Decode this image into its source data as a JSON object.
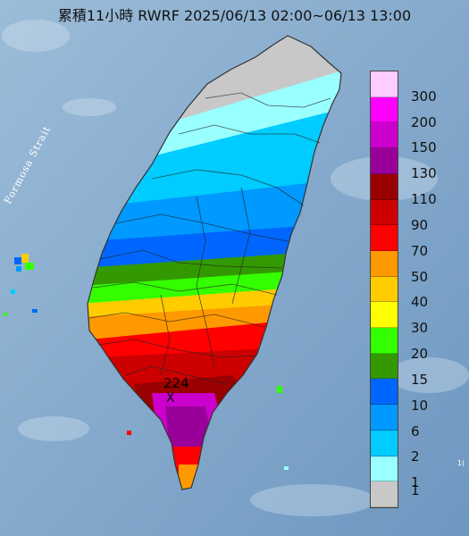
{
  "title": "累積11小時 RWRF 2025/06/13 02:00~06/13 13:00",
  "strait_label": "Formosa Strait",
  "max_value_label": "224",
  "max_marker": "X",
  "edge_note": "1(",
  "legend": {
    "unit_note": "",
    "bins": [
      {
        "label": "300",
        "color": "#ffccff"
      },
      {
        "label": "200",
        "color": "#ff00ff"
      },
      {
        "label": "150",
        "color": "#cc00cc"
      },
      {
        "label": "130",
        "color": "#990099"
      },
      {
        "label": "110",
        "color": "#990000"
      },
      {
        "label": "90",
        "color": "#cc0000"
      },
      {
        "label": "70",
        "color": "#ff0000"
      },
      {
        "label": "50",
        "color": "#ff9900"
      },
      {
        "label": "40",
        "color": "#ffcc00"
      },
      {
        "label": "30",
        "color": "#ffff00"
      },
      {
        "label": "20",
        "color": "#33ff00"
      },
      {
        "label": "15",
        "color": "#339900"
      },
      {
        "label": "10",
        "color": "#0066ff"
      },
      {
        "label": "6",
        "color": "#0099ff"
      },
      {
        "label": "2",
        "color": "#00ccff"
      },
      {
        "label": "1",
        "color": "#99ffff"
      },
      {
        "label": "",
        "color": "#c8c8c8"
      }
    ],
    "bottom_label": "1"
  }
}
